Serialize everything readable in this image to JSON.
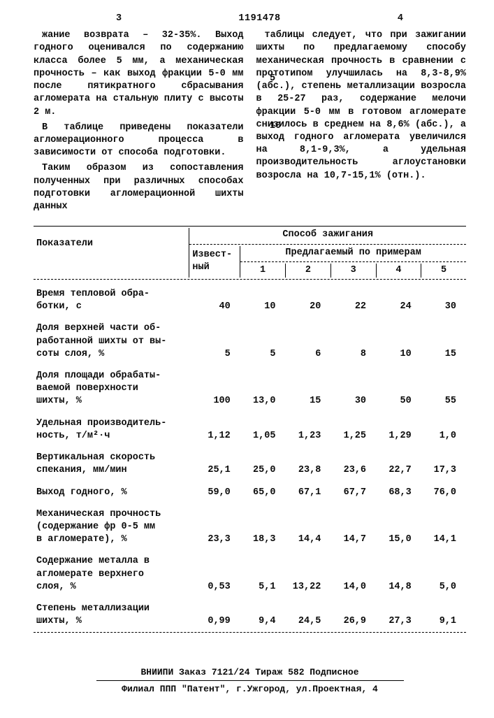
{
  "header": {
    "page_left": "3",
    "docnum": "1191478",
    "page_right": "4"
  },
  "left_col": {
    "p1": "жание возврата – 32-35%. Выход годного оценивался по содержанию класса более 5 мм, а механическая прочность – как выход фракции 5-0 мм после пятикратного сбрасывания агломерата на стальную плиту с высоты 2 м.",
    "p2": "В таблице приведены показатели агломерационного процесса в зависимости от способа подготовки.",
    "p3": "Таким образом из сопоставления полученных при различных способах подготовки агломерационной шихты данных",
    "side5": "5",
    "side10": "10"
  },
  "right_col": {
    "p1": "таблицы следует, что при зажигании шихты по предлагаемому способу механическая прочность в сравнении с прототипом улучшилась на 8,3-8,9% (абс.), степень металлизации возросла в 25-27 раз, содержание мелочи фракции 5-0 мм в готовом агломерате снизилось в среднем на 8,6% (абс.), а выход годного агломерата увеличился на 8,1-9,3%, а удельная производительность аглоустановки возросла на 10,7-15,1% (отн.)."
  },
  "table": {
    "h_indicators": "Показатели",
    "h_method": "Способ зажигания",
    "h_known": "Извест-\nный",
    "h_proposed": "Предлагаемый по примерам",
    "cols": [
      "1",
      "2",
      "3",
      "4",
      "5"
    ],
    "rows": [
      {
        "label": "Время тепловой обра-\nботки, с",
        "known": "40",
        "v": [
          "10",
          "20",
          "22",
          "24",
          "30"
        ]
      },
      {
        "label": "Доля верхней части об-\nработанной шихты от вы-\nсоты слоя, %",
        "known": "5",
        "v": [
          "5",
          "6",
          "8",
          "10",
          "15"
        ]
      },
      {
        "label": "Доля площади обрабаты-\nваемой поверхности\nшихты, %",
        "known": "100",
        "v": [
          "13,0",
          "15",
          "30",
          "50",
          "55"
        ]
      },
      {
        "label": "Удельная производитель-\nность, т/м²·ч",
        "known": "1,12",
        "v": [
          "1,05",
          "1,23",
          "1,25",
          "1,29",
          "1,0"
        ]
      },
      {
        "label": "Вертикальная скорость\nспекания, мм/мин",
        "known": "25,1",
        "v": [
          "25,0",
          "23,8",
          "23,6",
          "22,7",
          "17,3"
        ]
      },
      {
        "label": "Выход годного, %",
        "known": "59,0",
        "v": [
          "65,0",
          "67,1",
          "67,7",
          "68,3",
          "76,0"
        ]
      },
      {
        "label": "Механическая прочность\n(содержание фр 0-5 мм\nв агломерате), %",
        "known": "23,3",
        "v": [
          "18,3",
          "14,4",
          "14,7",
          "15,0",
          "14,1"
        ]
      },
      {
        "label": "Содержание металла в\nагломерате верхнего\nслоя, %",
        "known": "0,53",
        "v": [
          "5,1",
          "13,22",
          "14,0",
          "14,8",
          "5,0"
        ]
      },
      {
        "label": "Степень металлизации\nшихты, %",
        "known": "0,99",
        "v": [
          "9,4",
          "24,5",
          "26,9",
          "27,3",
          "9,1"
        ]
      }
    ]
  },
  "footer": {
    "line1": "ВНИИПИ   Заказ 7121/24   Тираж 582   Подписное",
    "line2": "Филиал ППП \"Патент\", г.Ужгород, ул.Проектная, 4"
  }
}
